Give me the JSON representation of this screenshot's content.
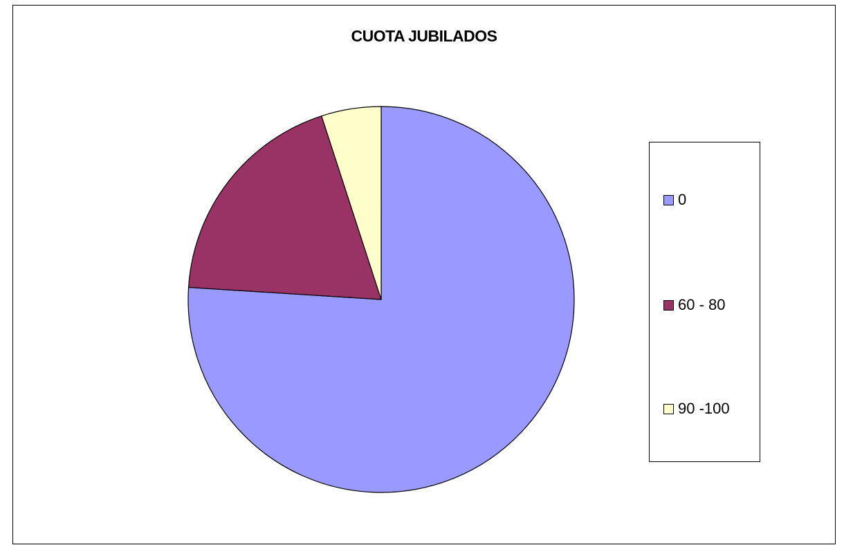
{
  "chart_data": {
    "type": "pie",
    "title": "CUOTA JUBILADOS",
    "legend_position": "right",
    "slices": [
      {
        "label": "0",
        "value": 76,
        "color": "#9999FF"
      },
      {
        "label": "60 - 80",
        "value": 19,
        "color": "#993366"
      },
      {
        "label": "90 -100",
        "value": 5,
        "color": "#FFFFCC"
      }
    ]
  }
}
